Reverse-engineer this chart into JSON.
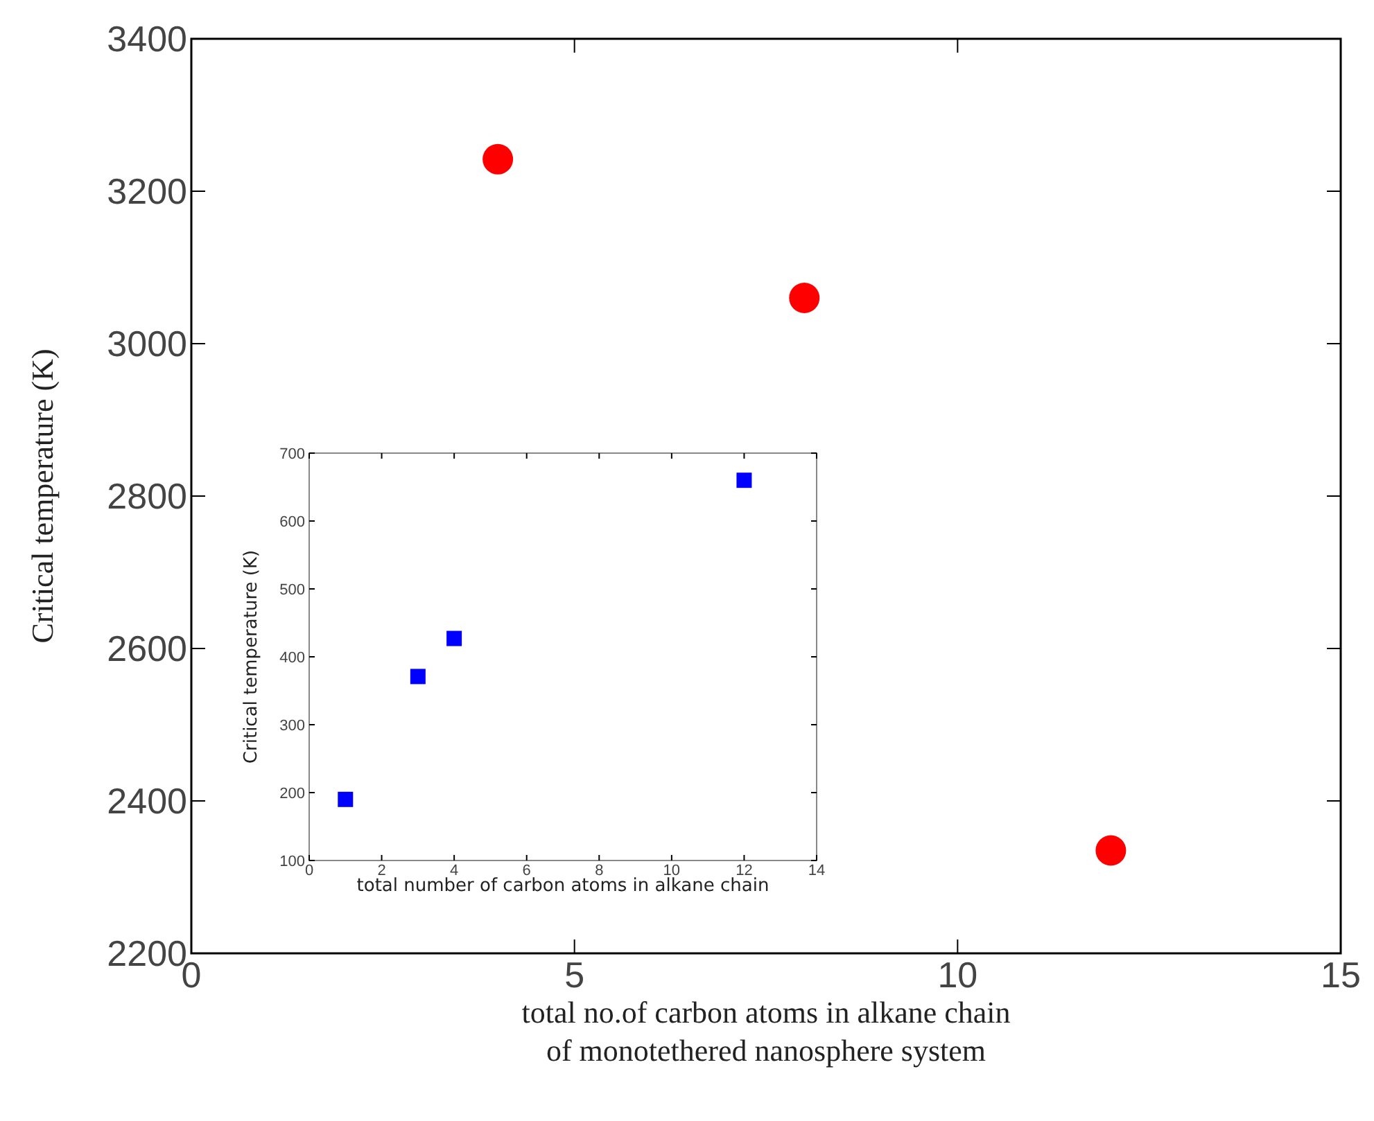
{
  "chart_data": [
    {
      "type": "scatter",
      "xlabel": "total no.of carbon atoms in alkane chain\nof monotethered nanosphere system",
      "ylabel": "Critical temperature (K)",
      "x": [
        4,
        8,
        12
      ],
      "series": [
        {
          "color": "#ff0000",
          "values": [
            3242,
            3060,
            2335
          ]
        }
      ],
      "xlim": [
        0,
        15
      ],
      "xticks": [
        0,
        5,
        10,
        15
      ],
      "ylim": [
        2200,
        3400
      ],
      "yticks": [
        2200,
        2400,
        2600,
        2800,
        3000,
        3200,
        3400
      ],
      "marker": "circle",
      "grid": false
    },
    {
      "type": "scatter",
      "xlabel": "total number of carbon atoms in alkane chain",
      "ylabel": "Critical temperature (K)",
      "x": [
        1,
        3,
        4,
        12
      ],
      "series": [
        {
          "color": "#0000ff",
          "values": [
            190,
            371,
            427,
            660
          ]
        }
      ],
      "xlim": [
        0,
        14
      ],
      "xticks": [
        0,
        2,
        4,
        6,
        8,
        10,
        12,
        14
      ],
      "ylim": [
        100,
        700
      ],
      "yticks": [
        100,
        200,
        300,
        400,
        500,
        600,
        700
      ],
      "marker": "square",
      "grid": false
    }
  ]
}
